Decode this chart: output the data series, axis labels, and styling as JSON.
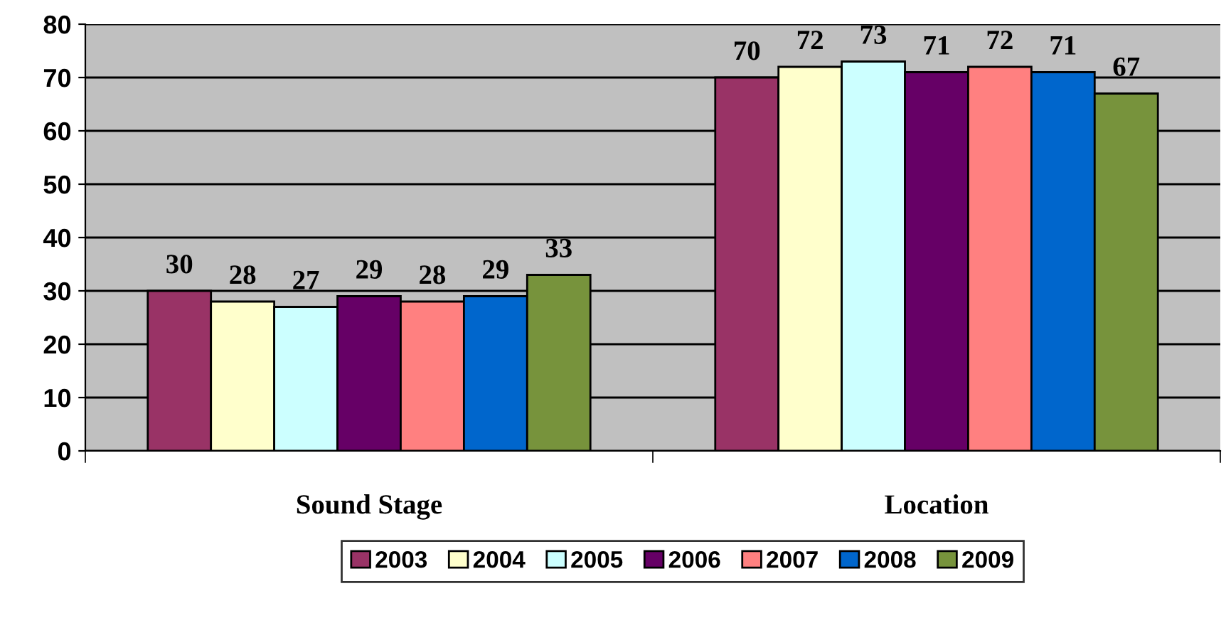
{
  "chart_data": {
    "type": "bar",
    "categories": [
      "Sound Stage",
      "Location"
    ],
    "series": [
      {
        "name": "2003",
        "color": "#993366",
        "values": [
          30,
          70
        ]
      },
      {
        "name": "2004",
        "color": "#ffffcc",
        "values": [
          28,
          72
        ]
      },
      {
        "name": "2005",
        "color": "#ccffff",
        "values": [
          27,
          73
        ]
      },
      {
        "name": "2006",
        "color": "#660066",
        "values": [
          29,
          71
        ]
      },
      {
        "name": "2007",
        "color": "#ff8080",
        "values": [
          28,
          72
        ]
      },
      {
        "name": "2008",
        "color": "#0066cc",
        "values": [
          29,
          71
        ]
      },
      {
        "name": "2009",
        "color": "#77933c",
        "values": [
          33,
          67
        ]
      }
    ],
    "ylim": [
      0,
      80
    ],
    "yticks": [
      0,
      10,
      20,
      30,
      40,
      50,
      60,
      70,
      80
    ],
    "grid": "y",
    "legend": "bottom",
    "data_labels": true
  }
}
